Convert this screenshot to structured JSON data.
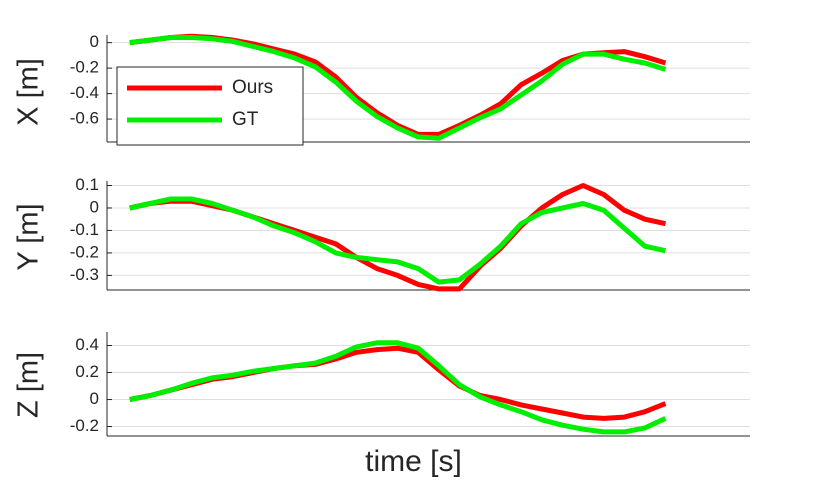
{
  "chart_data": [
    {
      "type": "line",
      "ylabel": "X [m]",
      "xlim": [
        -1.1,
        30.1
      ],
      "ylim": [
        -0.78,
        0.06
      ],
      "yticks": [
        -0.6,
        -0.4,
        -0.2,
        0
      ],
      "grid": true,
      "legend": "upper left",
      "series": [
        {
          "name": "Ours",
          "color": "#ff0000",
          "values": [
            0,
            0.02,
            0.04,
            0.05,
            0.04,
            0.02,
            -0.01,
            -0.05,
            -0.09,
            -0.15,
            -0.27,
            -0.43,
            -0.55,
            -0.65,
            -0.72,
            -0.72,
            -0.65,
            -0.57,
            -0.48,
            -0.33,
            -0.24,
            -0.14,
            -0.09,
            -0.08,
            -0.07,
            -0.11,
            -0.16
          ]
        },
        {
          "name": "GT",
          "color": "#00ee00",
          "values": [
            0,
            0.02,
            0.04,
            0.04,
            0.03,
            0.01,
            -0.03,
            -0.07,
            -0.12,
            -0.19,
            -0.31,
            -0.46,
            -0.58,
            -0.67,
            -0.74,
            -0.75,
            -0.67,
            -0.59,
            -0.52,
            -0.41,
            -0.3,
            -0.17,
            -0.09,
            -0.09,
            -0.13,
            -0.16,
            -0.21
          ]
        }
      ]
    },
    {
      "type": "line",
      "ylabel": "Y [m]",
      "xlim": [
        -1.1,
        30.1
      ],
      "ylim": [
        -0.365,
        0.12
      ],
      "yticks": [
        -0.3,
        -0.2,
        -0.1,
        0,
        0.1
      ],
      "grid": true,
      "series": [
        {
          "color": "#ff0000",
          "values": [
            0,
            0.02,
            0.03,
            0.03,
            0.01,
            -0.01,
            -0.04,
            -0.07,
            -0.1,
            -0.13,
            -0.16,
            -0.22,
            -0.27,
            -0.3,
            -0.34,
            -0.36,
            -0.36,
            -0.26,
            -0.18,
            -0.08,
            0.0,
            0.06,
            0.1,
            0.06,
            -0.01,
            -0.05,
            -0.07
          ]
        },
        {
          "color": "#00ee00",
          "values": [
            0,
            0.02,
            0.04,
            0.04,
            0.02,
            -0.01,
            -0.04,
            -0.08,
            -0.11,
            -0.15,
            -0.2,
            -0.22,
            -0.23,
            -0.24,
            -0.27,
            -0.33,
            -0.32,
            -0.25,
            -0.17,
            -0.07,
            -0.02,
            0.0,
            0.02,
            -0.01,
            -0.09,
            -0.17,
            -0.19
          ]
        }
      ]
    },
    {
      "type": "line",
      "ylabel": "Z [m]",
      "xlabel": "time [s]",
      "xlim": [
        -1.1,
        30.1
      ],
      "ylim": [
        -0.27,
        0.5
      ],
      "yticks": [
        -0.2,
        0,
        0.2,
        0.4
      ],
      "grid": true,
      "series": [
        {
          "color": "#ff0000",
          "values": [
            0,
            0.03,
            0.07,
            0.11,
            0.15,
            0.17,
            0.2,
            0.23,
            0.25,
            0.26,
            0.3,
            0.35,
            0.37,
            0.38,
            0.35,
            0.22,
            0.1,
            0.03,
            0.0,
            -0.04,
            -0.07,
            -0.1,
            -0.13,
            -0.14,
            -0.13,
            -0.09,
            -0.03
          ]
        },
        {
          "color": "#00ee00",
          "values": [
            0,
            0.03,
            0.07,
            0.12,
            0.16,
            0.18,
            0.21,
            0.23,
            0.25,
            0.27,
            0.32,
            0.39,
            0.42,
            0.42,
            0.38,
            0.25,
            0.11,
            0.02,
            -0.04,
            -0.09,
            -0.15,
            -0.19,
            -0.22,
            -0.24,
            -0.24,
            -0.21,
            -0.14
          ]
        }
      ]
    }
  ]
}
